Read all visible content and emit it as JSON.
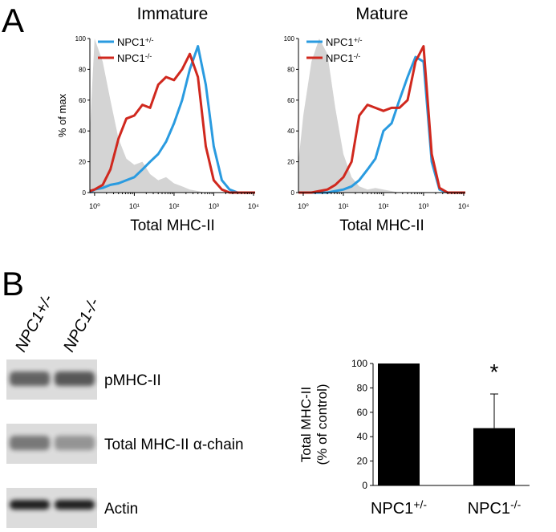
{
  "panels": [
    "A",
    "B"
  ],
  "chart_data": [
    {
      "type": "histogram-line",
      "title": "Immature",
      "xlabel": "Total MHC-II",
      "ylabel": "% of max",
      "xscale": "log",
      "xlim": [
        0.76,
        11000
      ],
      "ylim": [
        0,
        100
      ],
      "xticks": [
        {
          "value": 1,
          "label": "10⁰"
        },
        {
          "value": 10,
          "label": "10¹"
        },
        {
          "value": 100,
          "label": "10²"
        },
        {
          "value": 1000,
          "label": "10³"
        },
        {
          "value": 10000,
          "label": "10⁴"
        }
      ],
      "yticks": [
        0,
        20,
        40,
        60,
        80,
        100
      ],
      "x": [
        0.76,
        1,
        1.6,
        2.5,
        4,
        6.3,
        10,
        16,
        25,
        40,
        63,
        100,
        160,
        250,
        400,
        630,
        1000,
        1600,
        2500,
        4000,
        6300,
        11000
      ],
      "series": [
        {
          "color": "#d4d4d4",
          "fill": true,
          "values": [
            40,
            100,
            85,
            60,
            35,
            22,
            18,
            20,
            12,
            8,
            10,
            6,
            4,
            2,
            1,
            0,
            0,
            0,
            0,
            0,
            0,
            0
          ]
        },
        {
          "name": "NPC1+/-",
          "color": "#2a9be0",
          "values": [
            0,
            2,
            3,
            5,
            6,
            8,
            10,
            15,
            20,
            25,
            33,
            45,
            60,
            80,
            95,
            70,
            30,
            8,
            2,
            0,
            0,
            0
          ]
        },
        {
          "name": "NPC1-/-",
          "color": "#d0281e",
          "values": [
            1,
            2,
            5,
            15,
            35,
            48,
            50,
            57,
            55,
            70,
            75,
            73,
            80,
            90,
            75,
            30,
            8,
            2,
            0,
            0,
            0,
            0
          ]
        }
      ]
    },
    {
      "type": "histogram-line",
      "title": "Mature",
      "xlabel": "Total MHC-II",
      "xscale": "log",
      "xlim": [
        0.76,
        11000
      ],
      "ylim": [
        0,
        100
      ],
      "xticks": [
        {
          "value": 1,
          "label": "10⁰"
        },
        {
          "value": 10,
          "label": "10¹"
        },
        {
          "value": 100,
          "label": "10²"
        },
        {
          "value": 1000,
          "label": "10³"
        },
        {
          "value": 10000,
          "label": "10⁴"
        }
      ],
      "yticks": [
        0,
        20,
        40,
        60,
        80,
        100
      ],
      "x": [
        0.76,
        1,
        1.6,
        2.5,
        4,
        6.3,
        10,
        16,
        25,
        40,
        63,
        100,
        160,
        250,
        400,
        630,
        1000,
        1600,
        2500,
        4000,
        6300,
        11000
      ],
      "series": [
        {
          "color": "#d4d4d4",
          "fill": true,
          "values": [
            20,
            50,
            85,
            100,
            90,
            55,
            25,
            10,
            4,
            2,
            3,
            2,
            1,
            0,
            0,
            0,
            0,
            0,
            0,
            0,
            0,
            0
          ]
        },
        {
          "name": "NPC1+/-",
          "color": "#2a9be0",
          "values": [
            0,
            0,
            0,
            0,
            0,
            1,
            2,
            4,
            8,
            15,
            22,
            40,
            45,
            60,
            75,
            88,
            85,
            20,
            2,
            0,
            0,
            0
          ]
        },
        {
          "name": "NPC1-/-",
          "color": "#d0281e",
          "values": [
            0,
            0,
            0,
            1,
            2,
            5,
            10,
            20,
            50,
            57,
            55,
            53,
            55,
            55,
            60,
            85,
            95,
            25,
            3,
            0,
            0,
            0
          ]
        }
      ]
    },
    {
      "type": "bar",
      "ylabel": [
        "Total MHC-II",
        "(% of control)"
      ],
      "categories": [
        "NPC1+/-",
        "NPC1-/-"
      ],
      "values": [
        100,
        47
      ],
      "errors": [
        null,
        28
      ],
      "color": "#000000",
      "annotation": "*",
      "ylim": [
        0,
        100
      ],
      "yticks": [
        0,
        20,
        40,
        60,
        80,
        100
      ]
    }
  ],
  "blot": {
    "lanes": [
      "NPC1+/-",
      "NPC1-/-"
    ],
    "rows": [
      "pMHC-II",
      "Total MHC-II α-chain",
      "Actin"
    ]
  }
}
